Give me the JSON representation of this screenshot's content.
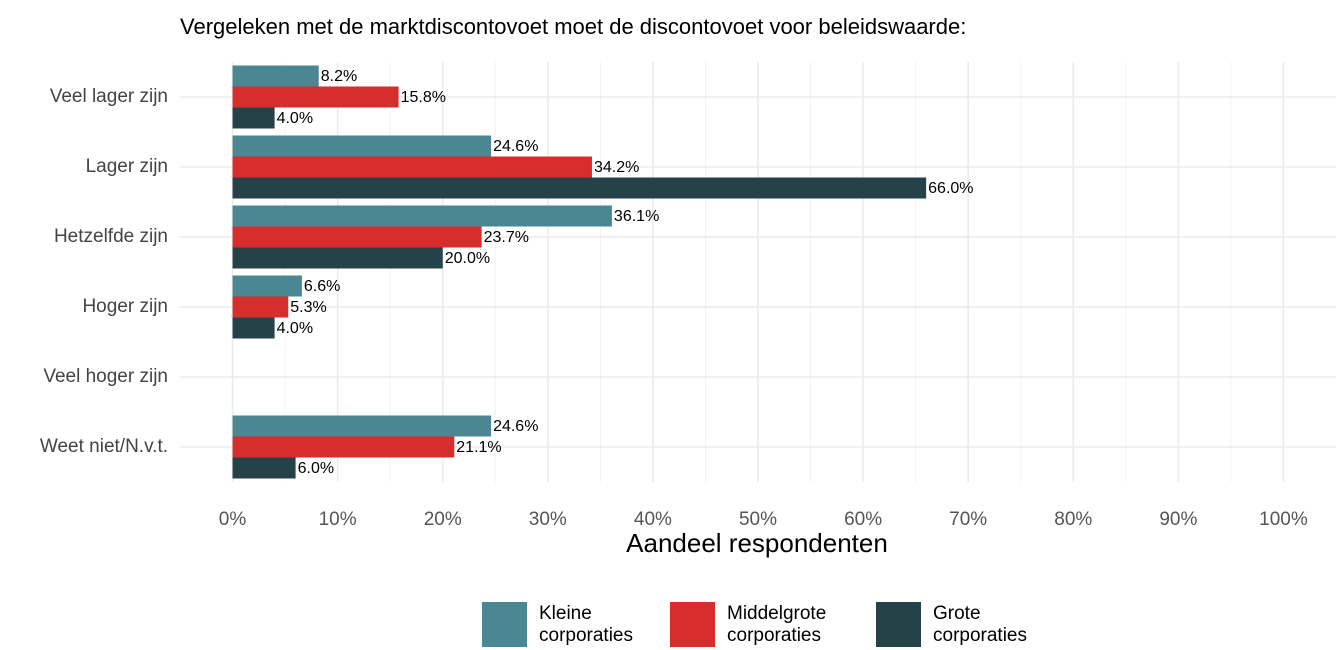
{
  "chart_data": {
    "type": "bar",
    "orientation": "horizontal",
    "title": "Vergeleken met de marktdiscontovoet moet de discontovoet voor beleidswaarde:",
    "xlabel": "Aandeel respondenten",
    "categories": [
      "Veel lager zijn",
      "Lager zijn",
      "Hetzelfde zijn",
      "Hoger zijn",
      "Veel hoger zijn",
      "Weet niet/N.v.t."
    ],
    "series": [
      {
        "name": "Kleine corporaties",
        "color": "#4a8793",
        "values": [
          8.2,
          24.6,
          36.1,
          6.6,
          null,
          24.6
        ],
        "value_labels": [
          "8.2%",
          "24.6%",
          "36.1%",
          "6.6%",
          null,
          "24.6%"
        ]
      },
      {
        "name": "Middelgrote corporaties",
        "color": "#d62d2d",
        "values": [
          15.8,
          34.2,
          23.7,
          5.3,
          null,
          21.1
        ],
        "value_labels": [
          "15.8%",
          "34.2%",
          "23.7%",
          "5.3%",
          null,
          "21.1%"
        ]
      },
      {
        "name": "Grote corporaties",
        "color": "#264249",
        "values": [
          4.0,
          66.0,
          20.0,
          4.0,
          null,
          6.0
        ],
        "value_labels": [
          "4.0%",
          "66.0%",
          "20.0%",
          "4.0%",
          null,
          "6.0%"
        ]
      }
    ],
    "xlim": [
      -5,
      105
    ],
    "xticks": [
      {
        "value": 0,
        "label": "0%"
      },
      {
        "value": 10,
        "label": "10%"
      },
      {
        "value": 20,
        "label": "20%"
      },
      {
        "value": 30,
        "label": "30%"
      },
      {
        "value": 40,
        "label": "40%"
      },
      {
        "value": 50,
        "label": "50%"
      },
      {
        "value": 60,
        "label": "60%"
      },
      {
        "value": 70,
        "label": "70%"
      },
      {
        "value": 80,
        "label": "80%"
      },
      {
        "value": 90,
        "label": "90%"
      },
      {
        "value": 100,
        "label": "100%"
      }
    ],
    "grid": true,
    "legend": "bottom"
  }
}
